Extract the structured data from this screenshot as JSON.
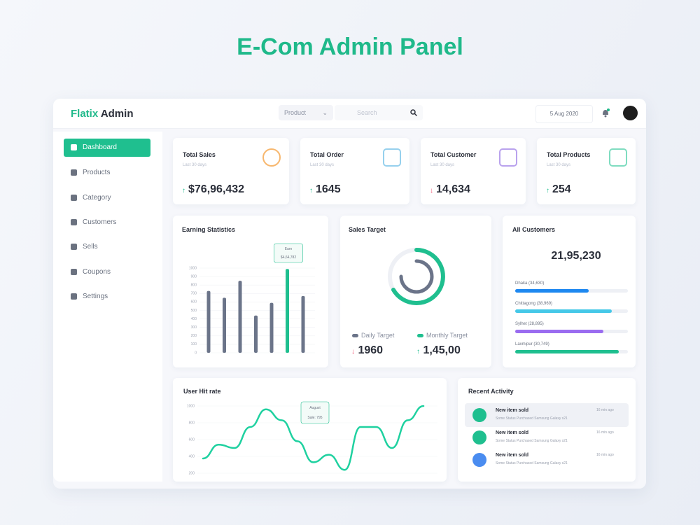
{
  "title": "E-Com Admin Panel",
  "header": {
    "brand_1": "Flatix",
    "brand_2": "Admin",
    "product_select": "Product",
    "search": "Search",
    "date": "5 Aug 2020"
  },
  "sidebar": [
    "Dashboard",
    "Products",
    "Category",
    "Customers",
    "Sells",
    "Coupons",
    "Settings"
  ],
  "stat_cards": [
    {
      "title": "Total Sales",
      "subtitle": "Last 30 days",
      "value": "$76,96,432"
    },
    {
      "title": "Total Order",
      "subtitle": "Last 30 days",
      "value": "1645"
    },
    {
      "title": "Total Customer",
      "subtitle": "Last 30 days",
      "value": "14,634"
    },
    {
      "title": "Total Products",
      "subtitle": "Last 30 days",
      "value": "254"
    }
  ],
  "earning": {
    "title": "Earning Statistics",
    "type": "bar",
    "ylim": [
      0,
      1000
    ],
    "yticks": [
      0,
      100,
      200,
      300,
      400,
      500,
      600,
      700,
      800,
      900,
      1000
    ],
    "values": [
      730,
      650,
      850,
      440,
      590,
      990,
      670
    ],
    "color": "#6b7489",
    "highlight_color": "#1fbf8f",
    "tooltip": [
      "Earn",
      "$4,64,782"
    ]
  },
  "sales_target": {
    "title": "Sales Target",
    "daily_label": "Daily Target",
    "daily_value": "1960",
    "monthly_label": "Monthly Target",
    "monthly_value": "1,45,00"
  },
  "customers": {
    "title": "All Customers",
    "total": "21,95,230",
    "regions": [
      "Dhaka (34,630)",
      "Chittagong (38,969)",
      "Sylhet (28,895)",
      "Laxmipur (30,749)"
    ]
  },
  "hit_rate": {
    "title": "User Hit rate",
    "type": "line",
    "ylim": [
      200,
      1000
    ],
    "yticks": [
      200,
      400,
      600,
      800,
      1000
    ],
    "values": [
      375,
      540,
      500,
      750,
      960,
      830,
      580,
      330,
      420,
      240,
      750,
      750,
      500,
      830,
      1000
    ],
    "color": "#1fd1a0",
    "tooltip": [
      "August",
      "Sale: 795"
    ]
  },
  "activity": {
    "title": "Recent Activity",
    "items": [
      {
        "title": "New item sold",
        "desc": "Some Status Purchased Samsung Galaxy s21",
        "time": "16 min ago"
      },
      {
        "title": "New item sold",
        "desc": "Some Status Purchased Samsung Galaxy s21",
        "time": "16 min ago"
      },
      {
        "title": "New item sold",
        "desc": "Some Status Purchased Samsung Galaxy s21",
        "time": "16 min ago"
      }
    ]
  }
}
